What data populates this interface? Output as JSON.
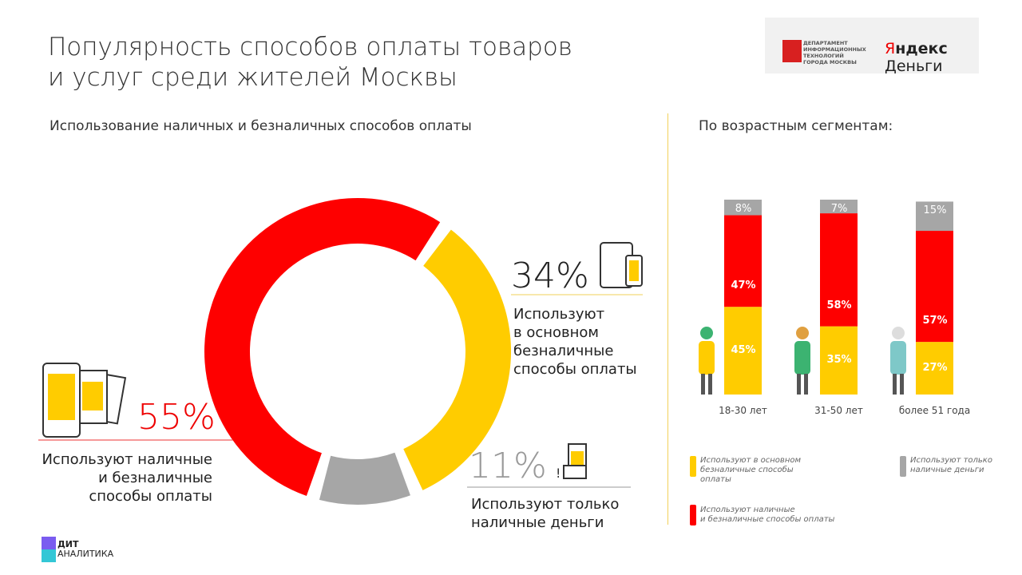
{
  "title_line1": "Популярность способов оплаты товаров",
  "title_line2": "и услуг среди жителей Москвы",
  "logo": {
    "dept": [
      "ДЕПАРТАМЕНТ",
      "ИНФОРМАЦИОННЫХ",
      "ТЕХНОЛОГИЙ",
      "ГОРОДА МОСКВЫ"
    ],
    "yandex_red": "Я",
    "yandex_rest": "ндекс",
    "yandex_money": " Деньги"
  },
  "left_subtitle": "Использование наличных и безналичных способов оплаты",
  "right_subtitle": "По возрастным сегментам:",
  "colors": {
    "red": "#fe0000",
    "yellow": "#ffcc00",
    "gray": "#a6a6a6"
  },
  "chart_data": [
    {
      "type": "pie",
      "variant": "donut",
      "slices": [
        {
          "name": "Используют наличные и безналичные способы оплаты",
          "value": 55,
          "label": "55%",
          "color": "#fe0000"
        },
        {
          "name": "Используют в основном безналичные способы оплаты",
          "value": 34,
          "label": "34%",
          "color": "#ffcc00"
        },
        {
          "name": "Используют только наличные деньги",
          "value": 11,
          "label": "11%",
          "color": "#a6a6a6"
        }
      ]
    },
    {
      "type": "bar",
      "stacked": true,
      "categories": [
        "18-30 лет",
        "31-50 лет",
        "более 51 года"
      ],
      "series": [
        {
          "name": "Используют в основном безналичные способы оплаты",
          "values": [
            45,
            35,
            27
          ],
          "color": "#ffcc00"
        },
        {
          "name": "Используют наличные и безналичные способы оплаты",
          "values": [
            47,
            58,
            57
          ],
          "color": "#fe0000"
        },
        {
          "name": "Используют только наличные деньги",
          "values": [
            8,
            7,
            15
          ],
          "color": "#a6a6a6"
        }
      ]
    }
  ],
  "callouts": {
    "cashless": {
      "pct": "34%",
      "text": [
        "Используют",
        "в основном",
        "безналичные",
        "способы оплаты"
      ]
    },
    "both": {
      "pct": "55%",
      "text": [
        "Используют наличные",
        "и безналичные",
        "способы оплаты"
      ]
    },
    "cash": {
      "pct": "11%",
      "text": [
        "Используют только",
        "наличные деньги"
      ]
    }
  },
  "legend": {
    "yellow": [
      "Используют в основном",
      "безналичные способы",
      "оплаты"
    ],
    "gray": [
      "Используют только",
      "наличные деньги"
    ],
    "red": [
      "Используют наличные",
      "и безналичные способы оплаты"
    ]
  },
  "footer": {
    "brand1": "ДИТ",
    "brand2": "АНАЛИТИКА"
  }
}
